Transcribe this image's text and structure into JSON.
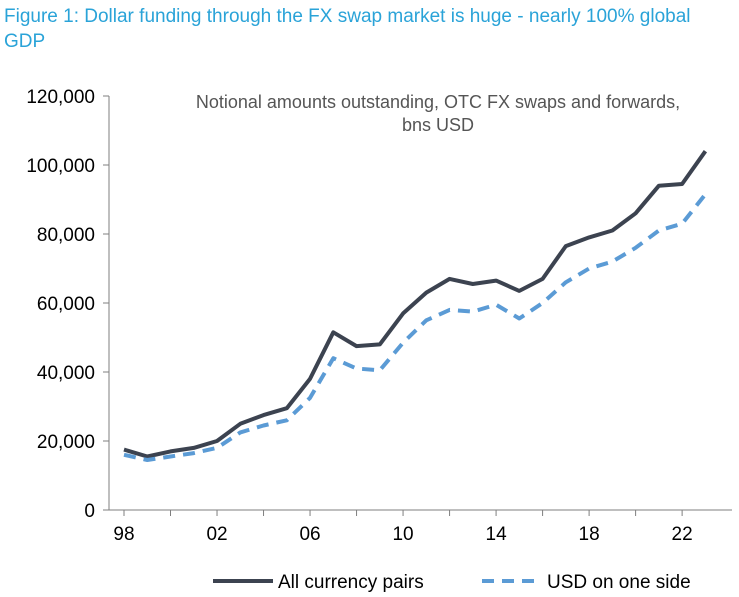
{
  "figure": {
    "title": "Figure 1: Dollar funding through the FX swap market is huge - nearly 100% global GDP"
  },
  "chart_data": {
    "type": "line",
    "subtitle_lines": [
      "Notional amounts outstanding, OTC FX swaps and forwards,",
      "bns USD"
    ],
    "xlabel": "",
    "ylabel": "",
    "xlim": [
      1998,
      2023.5
    ],
    "ylim": [
      0,
      120000
    ],
    "x_ticks": [
      {
        "value": 1998,
        "label": "98"
      },
      {
        "value": 2002,
        "label": "02"
      },
      {
        "value": 2006,
        "label": "06"
      },
      {
        "value": 2010,
        "label": "10"
      },
      {
        "value": 2014,
        "label": "14"
      },
      {
        "value": 2018,
        "label": "18"
      },
      {
        "value": 2022,
        "label": "22"
      }
    ],
    "y_ticks": [
      {
        "value": 0,
        "label": "0"
      },
      {
        "value": 20000,
        "label": "20,000"
      },
      {
        "value": 40000,
        "label": "40,000"
      },
      {
        "value": 60000,
        "label": "60,000"
      },
      {
        "value": 80000,
        "label": "80,000"
      },
      {
        "value": 100000,
        "label": "100,000"
      },
      {
        "value": 120000,
        "label": "120,000"
      }
    ],
    "grid": false,
    "legend_position": "bottom",
    "x": [
      1998,
      1999,
      2000,
      2001,
      2002,
      2003,
      2004,
      2005,
      2006,
      2007,
      2008,
      2009,
      2010,
      2011,
      2012,
      2013,
      2014,
      2015,
      2016,
      2017,
      2018,
      2019,
      2020,
      2021,
      2022,
      2023
    ],
    "series": [
      {
        "name": "All currency pairs",
        "color": "#3c4350",
        "style": "solid",
        "values": [
          17500,
          15500,
          17000,
          18000,
          20000,
          25000,
          27500,
          29500,
          38000,
          51500,
          47500,
          48000,
          57000,
          63000,
          67000,
          65500,
          66500,
          63500,
          67000,
          76500,
          79000,
          81000,
          86000,
          94000,
          94500,
          104000
        ]
      },
      {
        "name": "USD on one side",
        "color": "#5b9bd5",
        "style": "dashed",
        "values": [
          16000,
          14500,
          15500,
          16500,
          18000,
          22500,
          24500,
          26000,
          32500,
          44000,
          41000,
          40500,
          48500,
          55000,
          58000,
          57500,
          59500,
          55500,
          60000,
          66000,
          70000,
          72000,
          76000,
          81000,
          83000,
          91500
        ]
      }
    ]
  }
}
